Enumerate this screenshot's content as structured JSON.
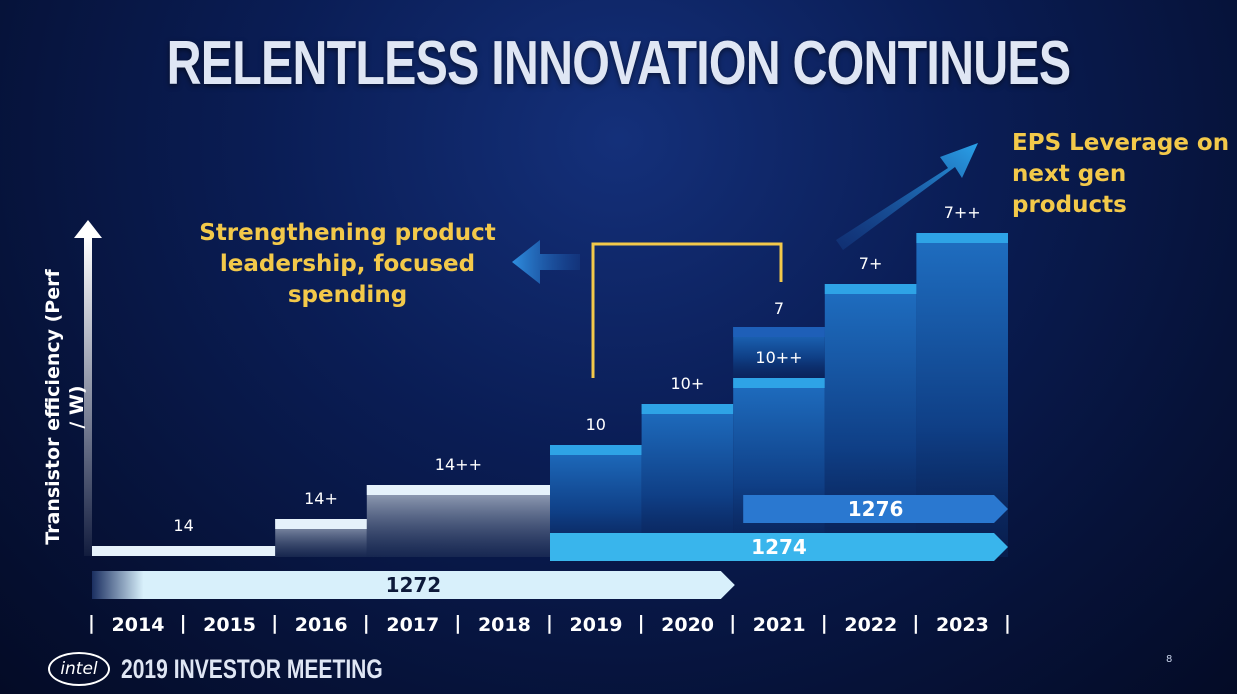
{
  "title": "RELENTLESS INNOVATION CONTINUES",
  "callouts": {
    "left": "Strengthening product leadership, focused spending",
    "right": "EPS Leverage on next gen products"
  },
  "footer": {
    "logo": "intel",
    "meeting": "2019 INVESTOR MEETING",
    "page": "8"
  },
  "colors": {
    "callout": "#f3c94a",
    "band_1272": "#d8f0fb",
    "band_1274": "#39b5ec",
    "band_1276": "#2a78d0",
    "step_top": "#2ea3e6"
  },
  "chart_data": {
    "type": "bar",
    "ylabel": "Transistor efficiency (Perf / W)",
    "categories": [
      "2014",
      "2015",
      "2016",
      "2017",
      "2018",
      "2019",
      "2020",
      "2021",
      "2022",
      "2023"
    ],
    "nodes": [
      {
        "label": "14",
        "start": "2014",
        "end": "2015",
        "level": 1
      },
      {
        "label": "14+",
        "start": "2016",
        "end": "2016",
        "level": 2
      },
      {
        "label": "14++",
        "start": "2017",
        "end": "2018",
        "level": 3
      },
      {
        "label": "10",
        "start": "2019",
        "end": "2019",
        "level": 4
      },
      {
        "label": "10+",
        "start": "2020",
        "end": "2020",
        "level": 5
      },
      {
        "label": "10++",
        "start": "2021",
        "end": "2021",
        "level": 6
      },
      {
        "label": "7",
        "start": "2021",
        "end": "2021",
        "level": 7
      },
      {
        "label": "7+",
        "start": "2022",
        "end": "2022",
        "level": 8
      },
      {
        "label": "7++",
        "start": "2023",
        "end": "2023",
        "level": 9
      }
    ],
    "process_bands": [
      {
        "name": "1272",
        "start": "2014",
        "end": "2021"
      },
      {
        "name": "1274",
        "start": "2019",
        "end": "2023"
      },
      {
        "name": "1276",
        "start": "2021",
        "end": "2023"
      }
    ]
  }
}
